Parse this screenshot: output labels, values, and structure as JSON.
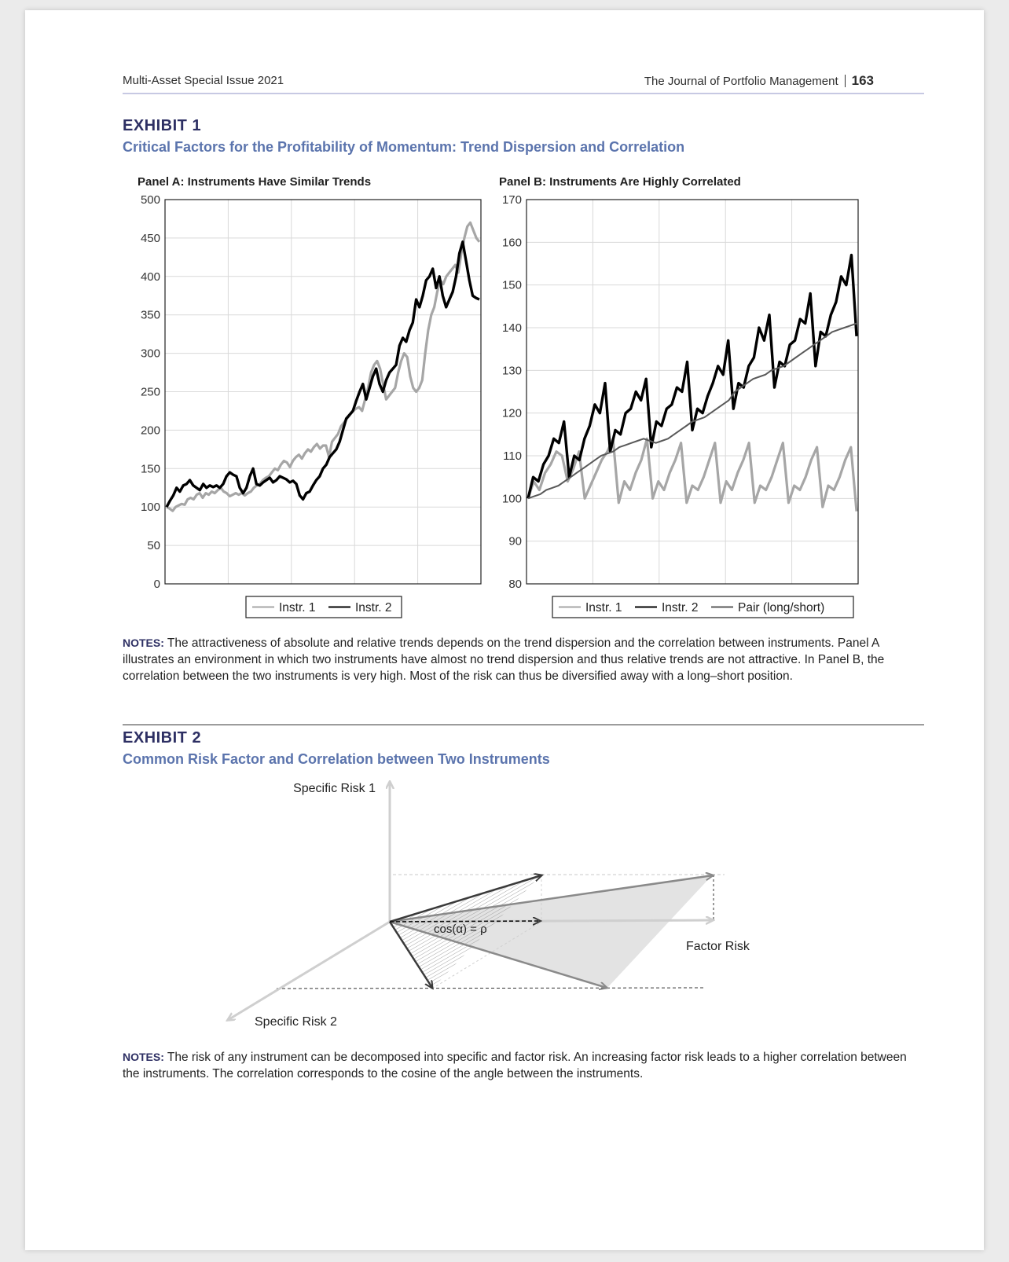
{
  "header": {
    "left": "Multi-Asset Special Issue 2021",
    "journal": "The Journal of Portfolio Management",
    "page_number": "163"
  },
  "exhibit1": {
    "label": "EXHIBIT 1",
    "title": "Critical Factors for the Profitability of Momentum: Trend Dispersion and Correlation",
    "notes_label": "NOTES:",
    "notes_text": "The attractiveness of absolute and relative trends depends on the trend dispersion and the correlation between instruments. Panel A illustrates an environment in which two instruments have almost no trend dispersion and thus relative trends are not attractive. In Panel B, the correlation between the two instruments is very high. Most of the risk can thus be diversified away with a long–short position."
  },
  "exhibit2": {
    "label": "EXHIBIT 2",
    "title": "Common Risk Factor and Correlation between Two Instruments",
    "notes_label": "NOTES:",
    "notes_text": "The risk of any instrument can be decomposed into specific and factor risk. An increasing factor risk leads to a higher correlation between the instruments. The correlation corresponds to the cosine of the angle between the instruments.",
    "diagram": {
      "label_specific1": "Specific Risk 1",
      "label_specific2": "Specific Risk 2",
      "label_factor": "Factor Risk",
      "label_cos": "cos(α) = ρ"
    }
  },
  "chart_data": [
    {
      "type": "line",
      "title": "Panel A: Instruments Have Similar Trends",
      "ylim": [
        0,
        500
      ],
      "yticks": [
        0,
        50,
        100,
        150,
        200,
        250,
        300,
        350,
        400,
        450,
        500
      ],
      "grid": true,
      "legend": "bottom",
      "series": [
        {
          "name": "Instr. 1",
          "color": "#a6a6a6",
          "values": [
            100,
            98,
            95,
            100,
            102,
            104,
            103,
            110,
            112,
            110,
            116,
            118,
            112,
            118,
            116,
            120,
            118,
            122,
            125,
            120,
            118,
            114,
            116,
            118,
            116,
            118,
            115,
            118,
            120,
            125,
            128,
            130,
            135,
            138,
            140,
            145,
            150,
            148,
            155,
            160,
            158,
            152,
            160,
            165,
            168,
            163,
            170,
            175,
            172,
            178,
            182,
            176,
            180,
            180,
            165,
            185,
            190,
            195,
            205,
            210,
            215,
            220,
            225,
            228,
            230,
            225,
            240,
            255,
            275,
            285,
            290,
            280,
            260,
            240,
            245,
            250,
            255,
            275,
            290,
            300,
            295,
            270,
            255,
            250,
            255,
            265,
            300,
            330,
            350,
            360,
            380,
            395,
            390,
            400,
            405,
            410,
            415,
            405,
            430,
            450,
            465,
            470,
            460,
            450,
            445
          ]
        },
        {
          "name": "Instr. 2",
          "color": "#000000",
          "values": [
            100,
            108,
            115,
            125,
            120,
            128,
            130,
            135,
            128,
            125,
            122,
            130,
            125,
            128,
            126,
            128,
            125,
            130,
            140,
            145,
            142,
            140,
            125,
            118,
            125,
            140,
            150,
            130,
            128,
            132,
            135,
            138,
            132,
            135,
            140,
            138,
            136,
            132,
            134,
            130,
            115,
            110,
            118,
            120,
            128,
            135,
            140,
            150,
            155,
            165,
            170,
            175,
            185,
            200,
            215,
            220,
            225,
            238,
            250,
            260,
            240,
            255,
            270,
            280,
            260,
            250,
            265,
            275,
            280,
            285,
            310,
            320,
            315,
            330,
            340,
            370,
            360,
            375,
            395,
            400,
            410,
            385,
            400,
            375,
            360,
            370,
            380,
            400,
            430,
            445,
            420,
            395,
            375,
            372,
            370
          ]
        }
      ]
    },
    {
      "type": "line",
      "title": "Panel B: Instruments Are Highly Correlated",
      "ylim": [
        80,
        170
      ],
      "yticks": [
        80,
        90,
        100,
        110,
        120,
        130,
        140,
        150,
        160,
        170
      ],
      "grid": true,
      "legend": "bottom",
      "series": [
        {
          "name": "Instr. 1",
          "color": "#a6a6a6",
          "values": [
            100,
            104,
            102,
            106,
            108,
            111,
            110,
            104,
            107,
            111,
            100,
            103,
            106,
            109,
            111,
            114,
            99,
            104,
            102,
            106,
            109,
            114,
            100,
            104,
            102,
            106,
            109,
            113,
            99,
            103,
            102,
            105,
            109,
            113,
            99,
            104,
            102,
            106,
            109,
            113,
            99,
            103,
            102,
            105,
            109,
            113,
            99,
            103,
            102,
            105,
            109,
            112,
            98,
            103,
            102,
            105,
            109,
            112,
            97
          ]
        },
        {
          "name": "Instr. 2",
          "color": "#000000",
          "values": [
            100,
            105,
            104,
            108,
            110,
            114,
            113,
            118,
            105,
            110,
            109,
            114,
            117,
            122,
            120,
            127,
            111,
            116,
            115,
            120,
            121,
            125,
            123,
            128,
            112,
            118,
            117,
            121,
            122,
            126,
            125,
            132,
            116,
            121,
            120,
            124,
            127,
            131,
            129,
            137,
            121,
            127,
            126,
            131,
            133,
            140,
            137,
            143,
            126,
            132,
            131,
            136,
            137,
            142,
            141,
            148,
            131,
            139,
            138,
            143,
            146,
            152,
            150,
            157,
            138
          ]
        },
        {
          "name": "Pair (long/short)",
          "color": "#595959",
          "values": [
            100,
            100.5,
            101,
            102,
            102.5,
            103,
            104,
            105,
            106,
            107,
            108,
            109,
            110,
            110.5,
            111,
            112,
            112.5,
            113,
            113.5,
            114,
            113.5,
            113,
            113.5,
            114,
            115,
            116,
            117,
            118,
            118.5,
            119,
            120,
            121,
            122,
            123,
            125,
            126,
            127,
            128,
            128.5,
            129,
            130,
            130.5,
            131,
            132,
            133,
            134,
            135,
            136,
            137,
            138,
            139,
            139.5,
            140,
            140.5,
            141
          ]
        }
      ]
    }
  ]
}
